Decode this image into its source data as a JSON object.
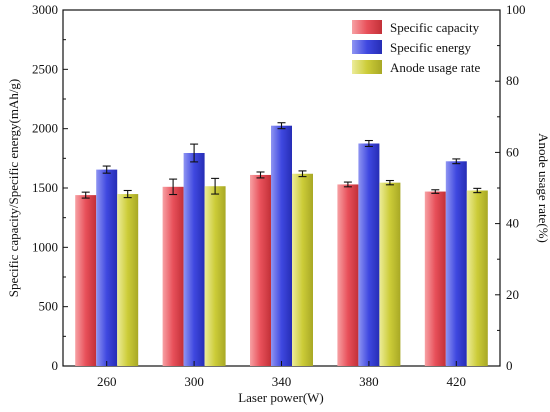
{
  "chart_data": {
    "type": "bar",
    "categories": [
      "260",
      "300",
      "340",
      "380",
      "420"
    ],
    "xlabel": "Laser power(W)",
    "ylabel": "Specific capacity/Specific energy(mAh/g)",
    "ylabel_right": "Anode usage rate(%)",
    "ylim": [
      0,
      3000
    ],
    "ylim_right": [
      0,
      100
    ],
    "yticks": [
      "0",
      "500",
      "1000",
      "1500",
      "2000",
      "2500",
      "3000"
    ],
    "yticks_right": [
      "0",
      "20",
      "40",
      "60",
      "80",
      "100"
    ],
    "legend_position": "top-right",
    "series": [
      {
        "name": "Specific capacity",
        "axis": "left",
        "color": "#e8505a",
        "values": [
          1440,
          1510,
          1610,
          1530,
          1470
        ],
        "errors": [
          25,
          65,
          25,
          20,
          15
        ]
      },
      {
        "name": "Specific energy",
        "axis": "left",
        "color": "#3f48e0",
        "values": [
          1655,
          1795,
          2025,
          1875,
          1725
        ],
        "errors": [
          30,
          75,
          25,
          25,
          20
        ]
      },
      {
        "name": "Anode usage rate",
        "axis": "right",
        "color": "#cccc38",
        "values": [
          48.3,
          50.5,
          54.0,
          51.5,
          49.3
        ],
        "errors": [
          1.0,
          2.2,
          0.8,
          0.6,
          0.6
        ]
      }
    ]
  }
}
